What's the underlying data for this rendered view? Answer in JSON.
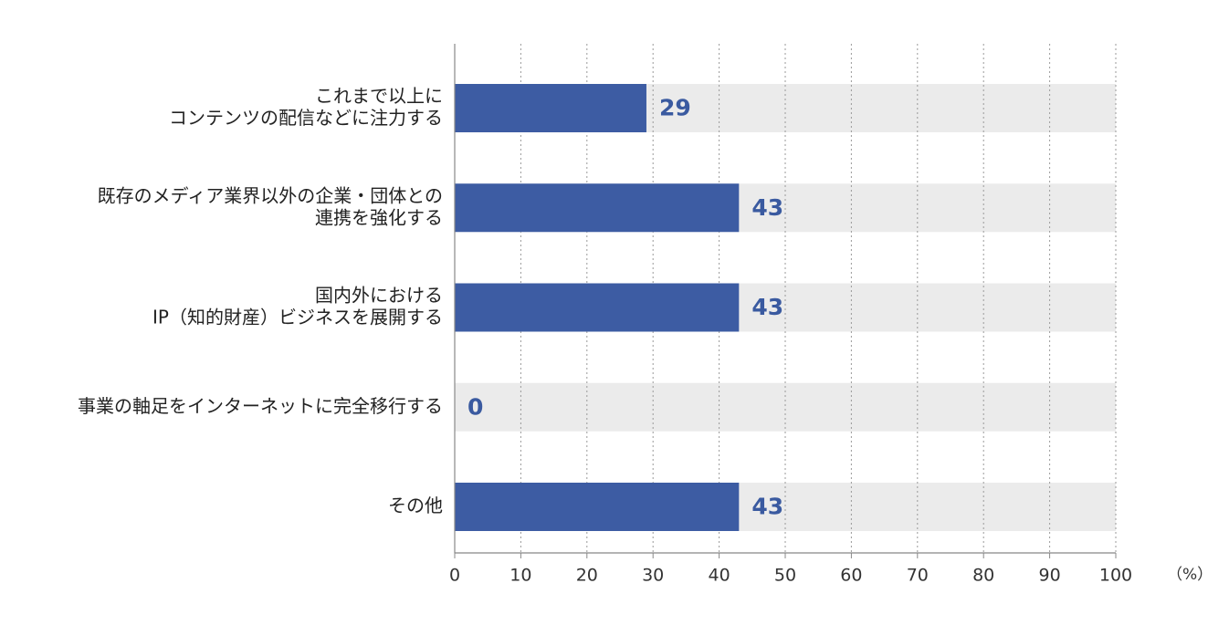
{
  "chart_data": {
    "type": "bar",
    "orientation": "horizontal",
    "categories": [
      [
        "これまで以上に",
        "コンテンツの配信などに注力する"
      ],
      [
        "既存のメディア業界以外の企業・団体との",
        "連携を強化する"
      ],
      [
        "国内外における",
        "IP（知的財産）ビジネスを展開する"
      ],
      [
        "事業の軸足をインターネットに完全移行する"
      ],
      [
        "その他"
      ]
    ],
    "values": [
      29,
      43,
      43,
      0,
      43
    ],
    "xlim": [
      0,
      100
    ],
    "xticks": [
      0,
      10,
      20,
      30,
      40,
      50,
      60,
      70,
      80,
      90,
      100
    ],
    "unit": "（%）",
    "grid": "vertical-dotted",
    "colors": {
      "bar": "#3d5ca3",
      "track": "#ebebeb",
      "label": "#3a5aa0",
      "grid": "#9a9a9a",
      "axis": "#888888"
    }
  }
}
